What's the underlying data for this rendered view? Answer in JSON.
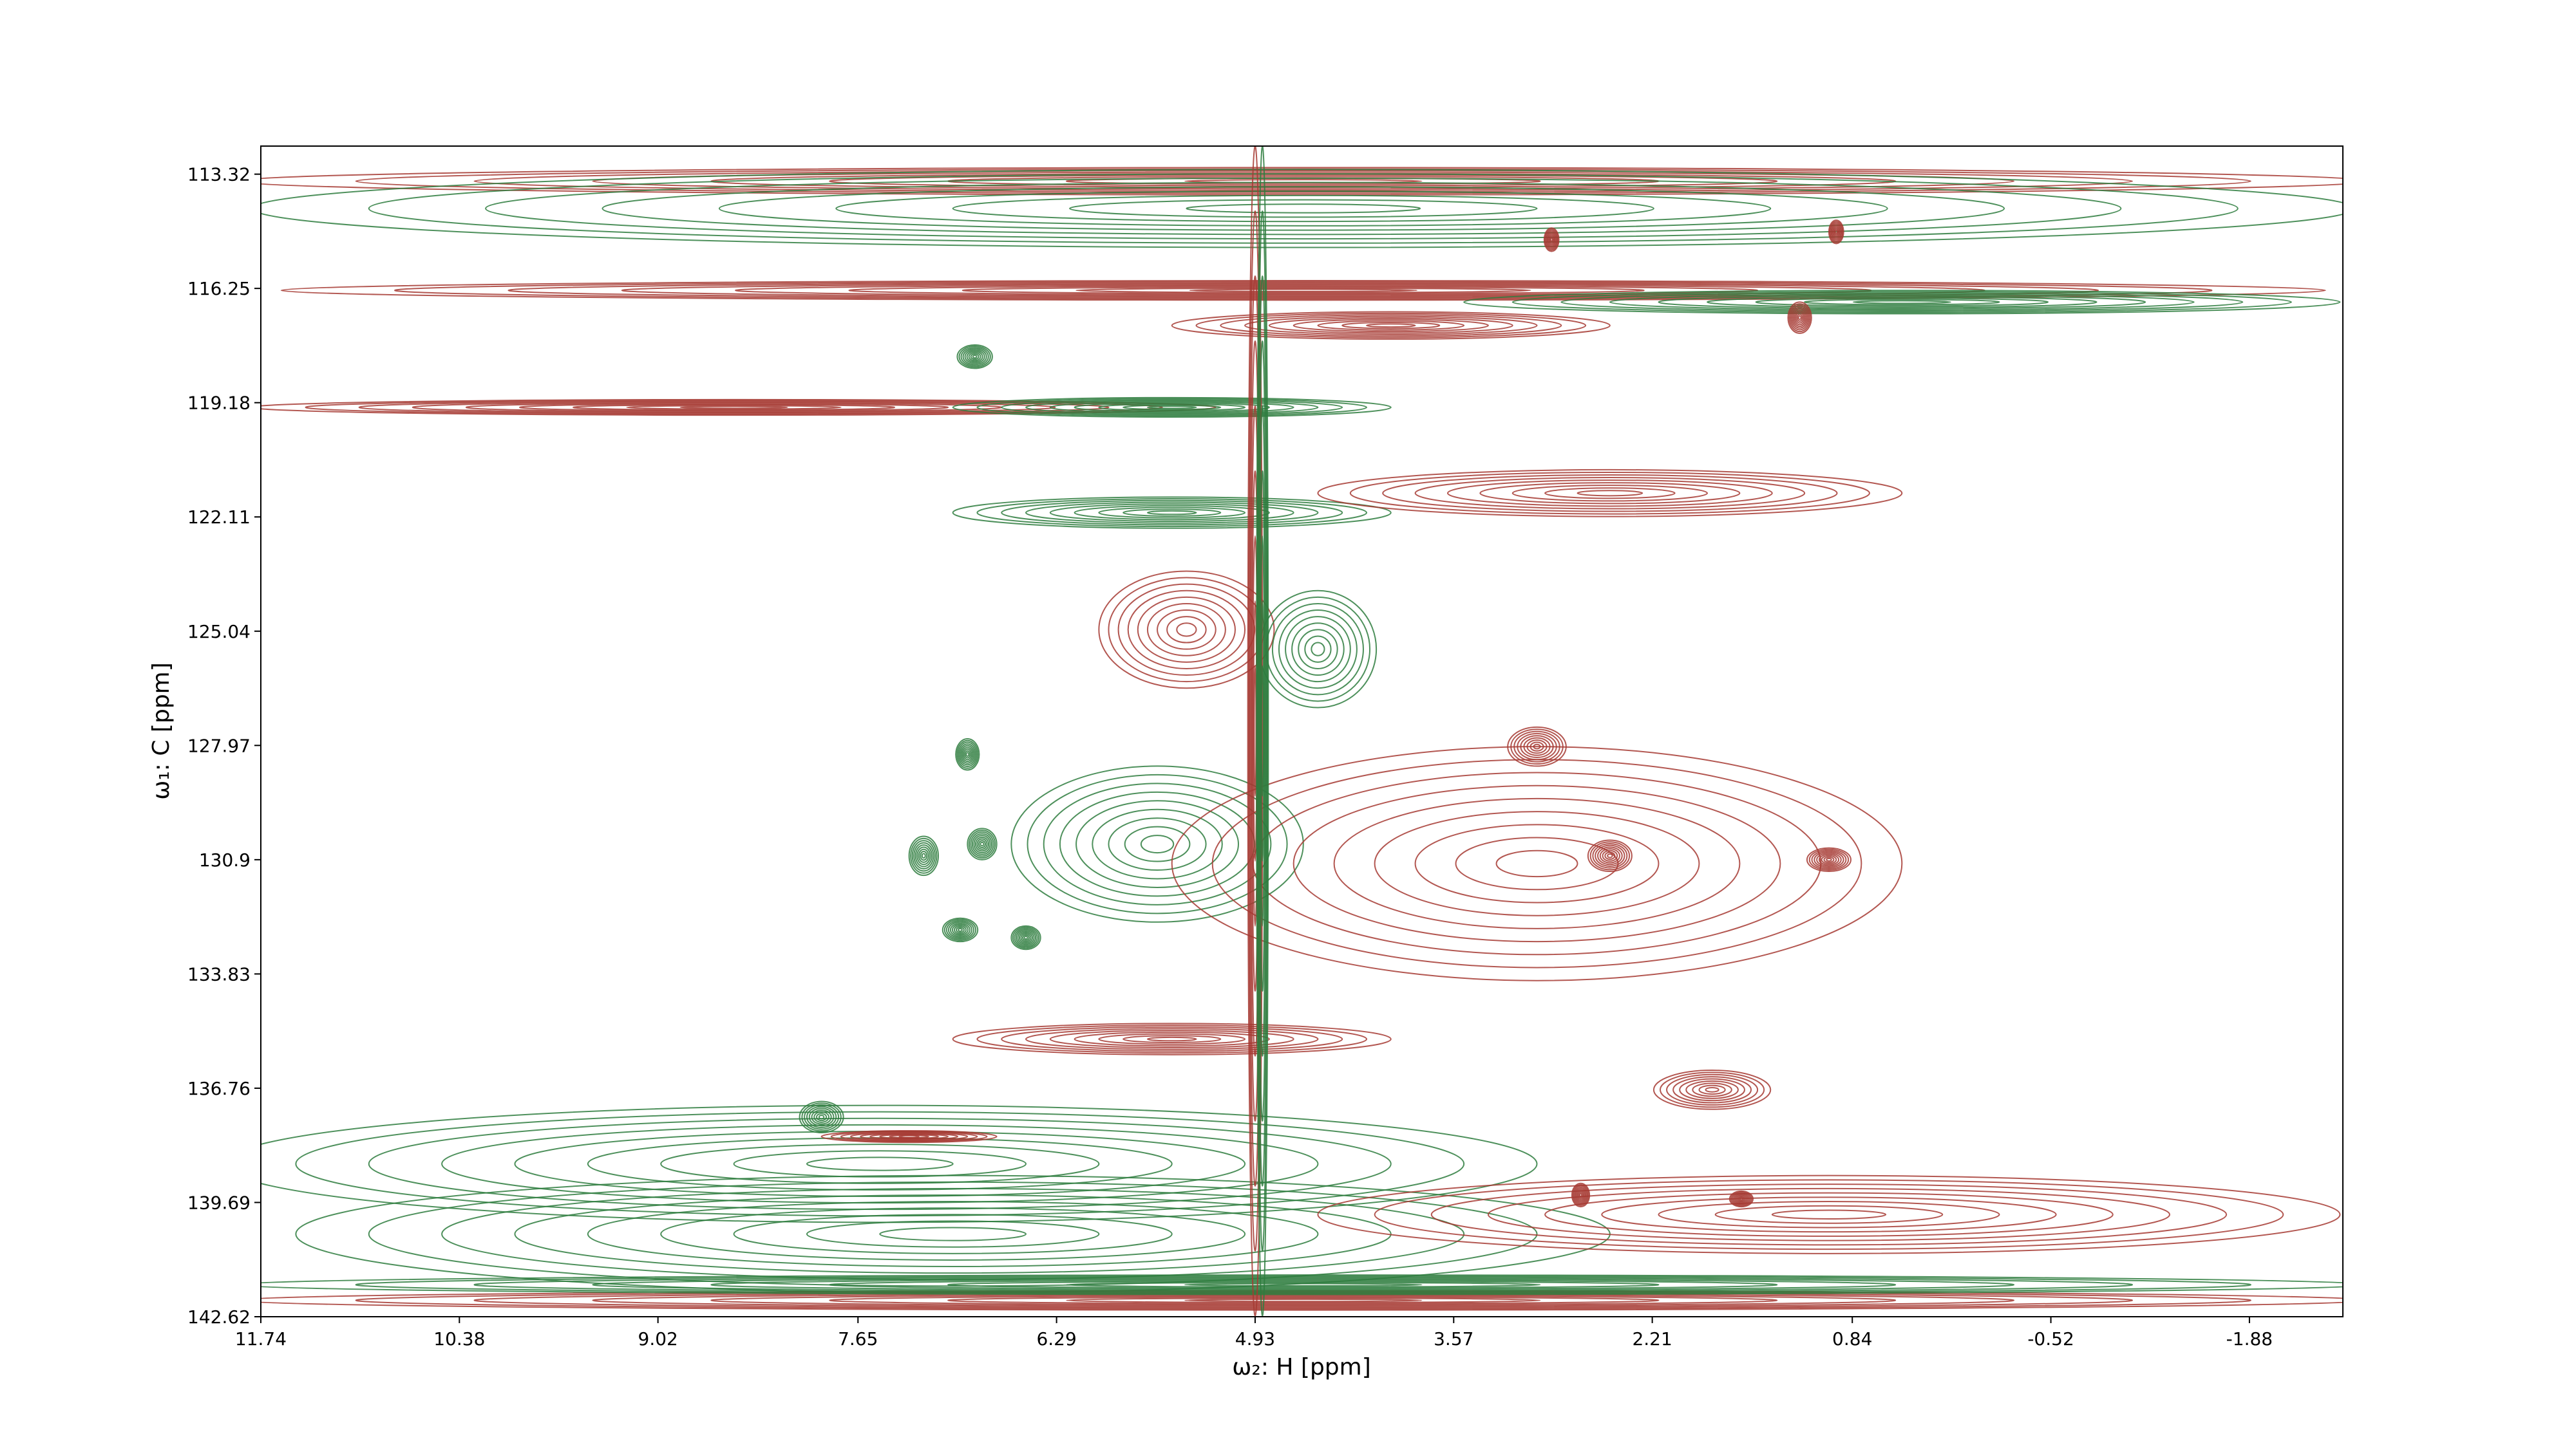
{
  "chart_data": {
    "type": "contour",
    "xlabel": "ω₂: H [ppm]",
    "ylabel": "ω₁: C [ppm]",
    "xlim": [
      11.74,
      -2.52
    ],
    "ylim": [
      142.62,
      112.6
    ],
    "xticks": [
      11.74,
      10.38,
      9.02,
      7.65,
      6.29,
      4.93,
      3.57,
      2.21,
      0.84,
      -0.52,
      -1.88
    ],
    "yticks": [
      113.32,
      116.25,
      119.18,
      122.11,
      125.04,
      127.97,
      130.9,
      133.83,
      136.76,
      139.69,
      142.62
    ],
    "colors": {
      "positive": "#a63a32",
      "negative": "#2e7d3e"
    },
    "levels": 9,
    "peaks": {
      "x": [
        4.6,
        4.6,
        4.6,
        0.5,
        8.5,
        5.5,
        4.0,
        5.5,
        2.5,
        5.4,
        4.5,
        5.6,
        3.0,
        5.5,
        1.8,
        7.5,
        7.0,
        1.0,
        4.6,
        4.6,
        7.3,
        4.93,
        4.88,
        6.85,
        6.9,
        6.8,
        7.2,
        6.95,
        6.5,
        7.9,
        2.9,
        0.95,
        1.2,
        3.0,
        2.5,
        1.0,
        2.7,
        1.6
      ],
      "y": [
        113.5,
        114.2,
        116.3,
        116.6,
        119.3,
        119.3,
        117.2,
        122.0,
        121.5,
        125.0,
        125.5,
        130.5,
        131.0,
        135.5,
        136.8,
        138.7,
        140.5,
        140.0,
        142.2,
        141.8,
        138.0,
        127.6,
        127.6,
        118.0,
        128.2,
        130.5,
        130.8,
        132.7,
        132.9,
        137.5,
        115.0,
        114.8,
        117.0,
        128.0,
        130.8,
        130.9,
        139.5,
        139.6
      ],
      "wx": [
        7.3,
        7.2,
        7.0,
        3.0,
        3.3,
        1.5,
        1.5,
        1.5,
        2.0,
        0.6,
        0.4,
        1.0,
        2.5,
        1.5,
        0.4,
        4.5,
        4.5,
        3.5,
        7.3,
        7.3,
        0.6,
        0.05,
        0.04,
        0.12,
        0.08,
        0.1,
        0.1,
        0.12,
        0.1,
        0.15,
        0.05,
        0.05,
        0.08,
        0.2,
        0.15,
        0.15,
        0.06,
        0.08
      ],
      "wy": [
        0.35,
        1.0,
        0.25,
        0.3,
        0.2,
        0.25,
        0.35,
        0.4,
        0.6,
        1.5,
        1.5,
        2.0,
        3.0,
        0.4,
        0.5,
        1.5,
        1.5,
        1.0,
        0.25,
        0.25,
        0.15,
        15.0,
        15.0,
        0.3,
        0.4,
        0.4,
        0.5,
        0.3,
        0.3,
        0.4,
        0.3,
        0.3,
        0.4,
        0.5,
        0.4,
        0.3,
        0.3,
        0.2
      ],
      "sign": [
        1,
        -1,
        1,
        -1,
        1,
        -1,
        1,
        -1,
        1,
        1,
        -1,
        -1,
        1,
        1,
        1,
        -1,
        -1,
        1,
        1,
        -1,
        1,
        1,
        -1,
        -1,
        -1,
        -1,
        -1,
        -1,
        -1,
        -1,
        1,
        1,
        1,
        1,
        1,
        1,
        1,
        1
      ]
    }
  }
}
